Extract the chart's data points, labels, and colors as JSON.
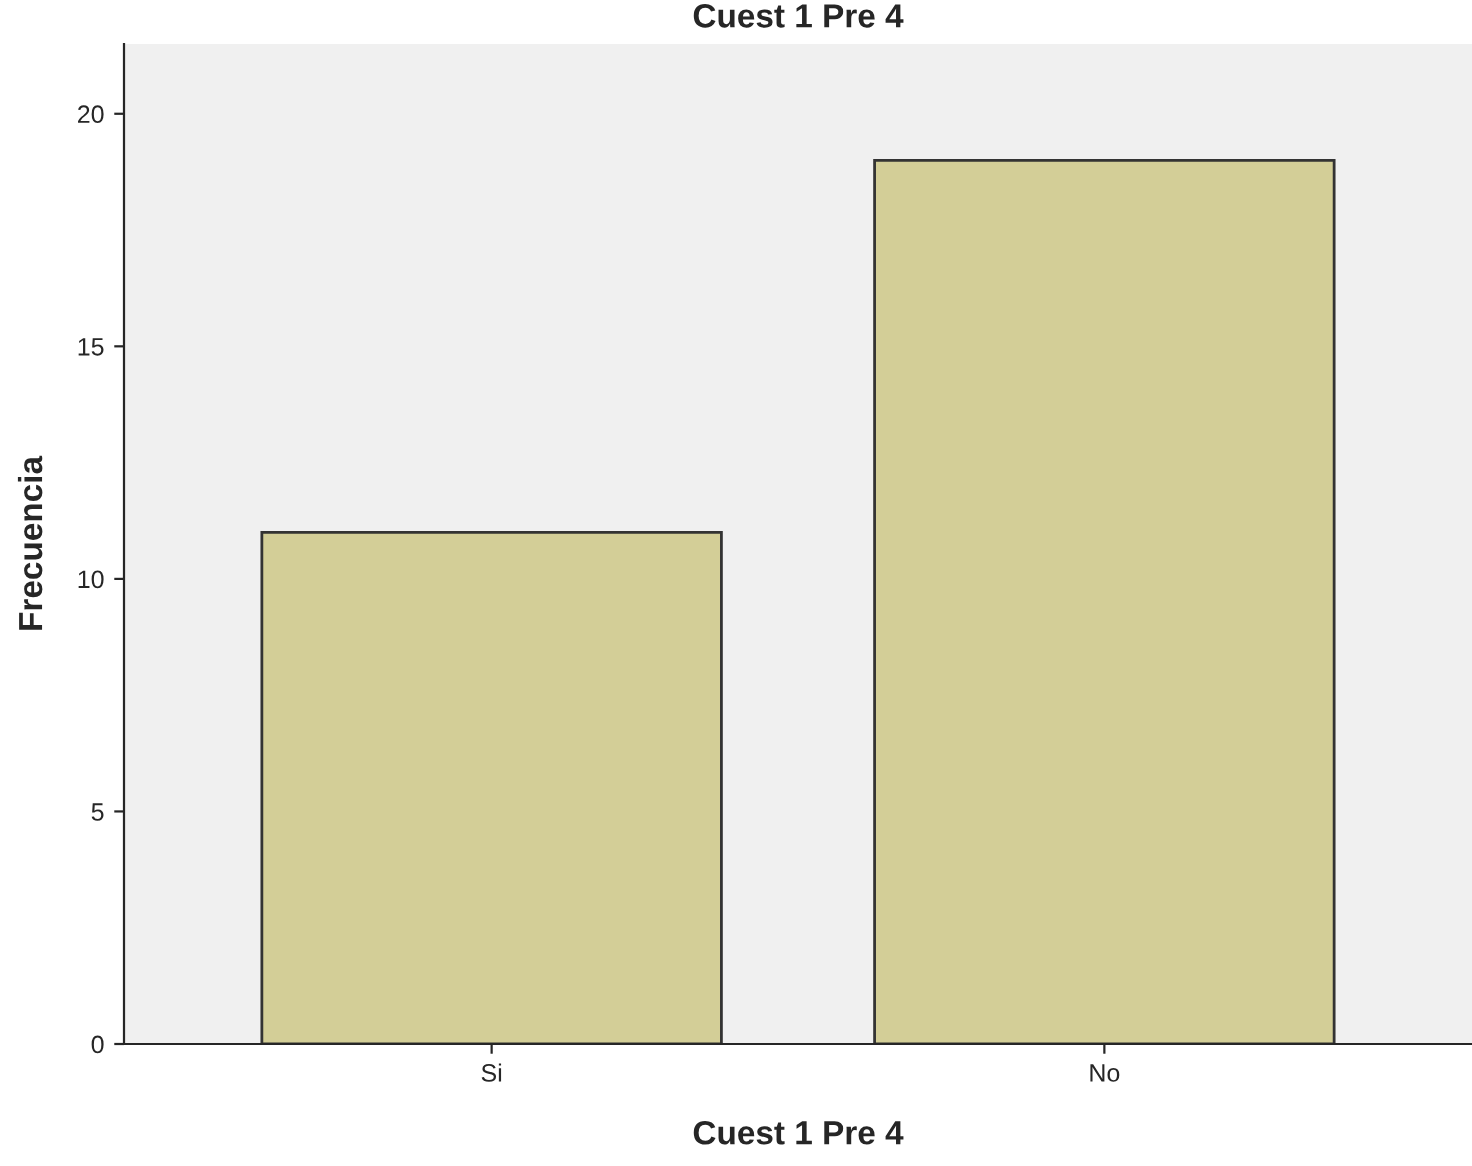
{
  "chart_data": {
    "type": "bar",
    "title": "Cuest 1 Pre 4",
    "xlabel": "Cuest 1 Pre 4",
    "ylabel": "Frecuencia",
    "categories": [
      "Si",
      "No"
    ],
    "values": [
      11,
      19
    ],
    "color": "#d3ce97",
    "ylim": [
      0,
      21.5
    ],
    "yticks": [
      0,
      5,
      10,
      15,
      20
    ],
    "grid": false
  }
}
